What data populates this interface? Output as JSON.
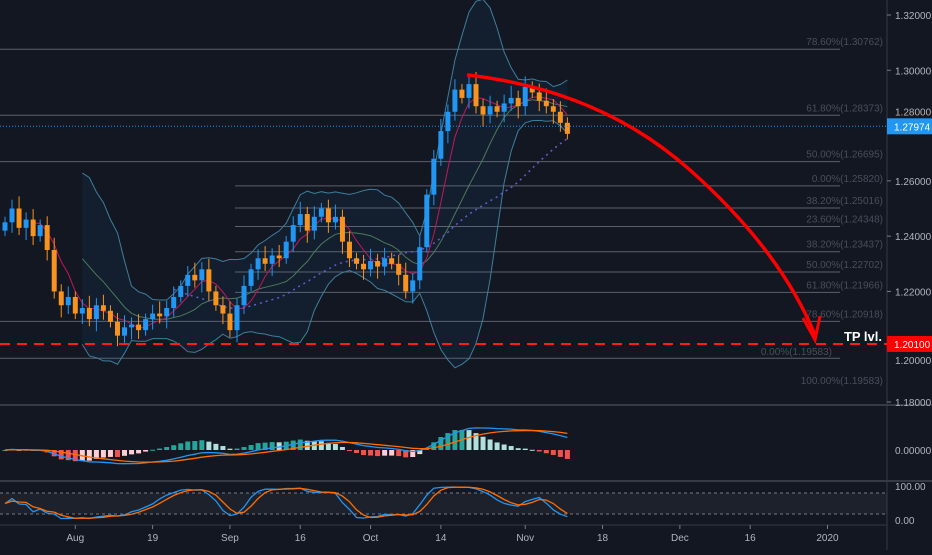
{
  "chart_data": {
    "type": "candlestick",
    "title": "",
    "price_axis": {
      "ylim": [
        1.18,
        1.32
      ],
      "ticks": [
        "1.32000",
        "1.30000",
        "1.28000",
        "1.26000",
        "1.24000",
        "1.22000",
        "1.20000",
        "1.18000"
      ],
      "tick_values": [
        1.32,
        1.3,
        1.28,
        1.26,
        1.24,
        1.22,
        1.2,
        1.18
      ]
    },
    "time_axis": {
      "labels": [
        "Aug",
        "19",
        "Sep",
        "16",
        "Oct",
        "14",
        "Nov",
        "18",
        "Dec",
        "16",
        "2020"
      ],
      "label_index": [
        10,
        21,
        32,
        42,
        52,
        62,
        74,
        85,
        96,
        106,
        117
      ]
    },
    "closes": [
      1.245,
      1.25,
      1.243,
      1.246,
      1.24,
      1.244,
      1.235,
      1.22,
      1.215,
      1.218,
      1.212,
      1.214,
      1.21,
      1.215,
      1.213,
      1.209,
      1.204,
      1.207,
      1.208,
      1.206,
      1.21,
      1.212,
      1.211,
      1.214,
      1.218,
      1.222,
      1.226,
      1.224,
      1.228,
      1.22,
      1.215,
      1.212,
      1.206,
      1.215,
      1.222,
      1.228,
      1.232,
      1.23,
      1.233,
      1.232,
      1.238,
      1.244,
      1.248,
      1.242,
      1.247,
      1.25,
      1.245,
      1.247,
      1.238,
      1.232,
      1.23,
      1.228,
      1.231,
      1.229,
      1.232,
      1.23,
      1.226,
      1.22,
      1.224,
      1.236,
      1.255,
      1.268,
      1.278,
      1.285,
      1.293,
      1.29,
      1.295,
      1.287,
      1.284,
      1.287,
      1.285,
      1.288,
      1.29,
      1.287,
      1.294,
      1.292,
      1.289,
      1.287,
      1.285,
      1.281,
      1.277
    ],
    "current_price": {
      "value": 1.27974,
      "label": "1.27974"
    },
    "tp_level": {
      "value": 1.201,
      "label": "1.20100",
      "text": "TP lvl."
    },
    "fib_levels": [
      {
        "label": "78.60%(1.30762)",
        "value": 1.30762
      },
      {
        "label": "61.80%(1.28373)",
        "value": 1.28373
      },
      {
        "label": "50.00%(1.26695)",
        "value": 1.26695
      },
      {
        "label": "0.00%(1.25820)",
        "value": 1.2582
      },
      {
        "label": "38.20%(1.25016)",
        "value": 1.25016
      },
      {
        "label": "23.60%(1.24348)",
        "value": 1.24348
      },
      {
        "label": "38.20%(1.23437)",
        "value": 1.23437
      },
      {
        "label": "50.00%(1.22702)",
        "value": 1.22702
      },
      {
        "label": "61.80%(1.21966)",
        "value": 1.21966
      },
      {
        "label": "78.60%(1.20918)",
        "value": 1.20918
      },
      {
        "label": "0.00%(1.19583)",
        "value": 1.19583
      },
      {
        "label": "100.00%(1.19583)",
        "value": 1.19583
      }
    ],
    "macd_axis": {
      "zero_label": "0.00000"
    },
    "stoch_axis": {
      "top_label": "100.00",
      "bottom_label": "0.00",
      "overbought": 80,
      "oversold": 20
    },
    "colors": {
      "bg": "#131722",
      "up": "#2196f3",
      "down": "#f7931e",
      "accent": "#ff0000",
      "current": "#2196f3"
    }
  }
}
